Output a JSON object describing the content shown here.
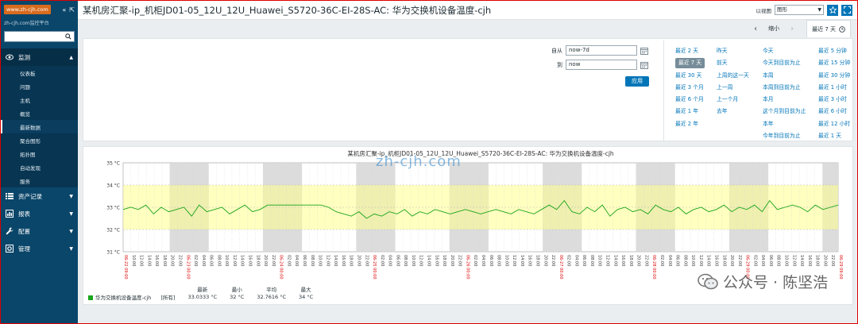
{
  "sidebar": {
    "logo": "www.zh-cjh.com",
    "subtitle": "zh-cjh.com监控平台",
    "search_placeholder": "",
    "menu": [
      {
        "label": "监测",
        "icon": "eye-icon",
        "expanded": true
      },
      {
        "label": "资产记录",
        "icon": "list-icon"
      },
      {
        "label": "报表",
        "icon": "report-icon"
      },
      {
        "label": "配置",
        "icon": "wrench-icon"
      },
      {
        "label": "管理",
        "icon": "gear-icon"
      }
    ],
    "submenu": [
      "仪表板",
      "问题",
      "主机",
      "概览",
      "最新数据",
      "聚合图形",
      "拓扑图",
      "自动发现",
      "服务"
    ],
    "current_sub": "最新数据"
  },
  "header": {
    "title": "某机房汇聚-ip_机柜JD01-05_12U_12U_Huawei_S5720-36C-EI-28S-AC: 华为交换机设备温度-cjh",
    "view_label": "以视图",
    "view_value": "图形"
  },
  "nav": {
    "zoom_out": "缩小",
    "tab": "最近 7 天"
  },
  "filter": {
    "from_label": "自从",
    "from_value": "now-7d",
    "to_label": "到",
    "to_value": "now",
    "apply": "应用",
    "quick_cols": [
      [
        "最近 2 天",
        "最近 7 天",
        "最近 30 天",
        "最近 3 个月",
        "最近 6 个月",
        "最近 1 年",
        "最近 2 年"
      ],
      [
        "昨天",
        "前天",
        "上周的这一天",
        "上一周",
        "上一个月",
        "去年"
      ],
      [
        "今天",
        "今天到目前为止",
        "本周",
        "本周到目前为止",
        "本月",
        "这个月到目前为止",
        "本年",
        "今年到目前为止"
      ],
      [
        "最近 5 分钟",
        "最近 15 分钟",
        "最近 30 分钟",
        "最近 1 小时",
        "最近 3 小时",
        "最近 6 小时",
        "最近 12 小时",
        "最近 1 天"
      ]
    ],
    "selected": "最近 7 天"
  },
  "chart_data": {
    "type": "line",
    "title": "某机房汇聚-ip_机柜JD01-05_12U_12U_Huawei_S5720-36C-EI-28S-AC: 华为交换机设备温度-cjh",
    "y_ticks": [
      "35 °C",
      "34 °C",
      "33 °C",
      "32 °C",
      "31 °C"
    ],
    "ylim": [
      31,
      35
    ],
    "band_min": 32,
    "band_max": 34,
    "x_tick_labels": [
      "06-22 09:00",
      "10:00",
      "12:00",
      "14:00",
      "16:00",
      "18:00",
      "20:00",
      "22:00",
      "06-23 00:00",
      "02:00",
      "04:00",
      "06:00",
      "08:00",
      "10:00",
      "12:00",
      "14:00",
      "16:00",
      "18:00",
      "20:00",
      "22:00",
      "06-24 00:00",
      "02:00",
      "04:00",
      "06:00",
      "08:00",
      "10:00",
      "12:00",
      "14:00",
      "16:00",
      "18:00",
      "20:00",
      "22:00",
      "06-25 00:00",
      "02:00",
      "04:00",
      "06:00",
      "08:00",
      "10:00",
      "12:00",
      "14:00",
      "16:00",
      "18:00",
      "20:00",
      "22:00",
      "06-26 00:00",
      "02:00",
      "04:00",
      "06:00",
      "08:00",
      "10:00",
      "12:00",
      "14:00",
      "16:00",
      "18:00",
      "20:00",
      "22:00",
      "06-27 00:00",
      "02:00",
      "04:00",
      "06:00",
      "08:00",
      "10:00",
      "12:00",
      "14:00",
      "16:00",
      "18:00",
      "20:00",
      "22:00",
      "06-28 00:00",
      "02:00",
      "04:00",
      "06:00",
      "08:00",
      "10:00",
      "12:00",
      "14:00",
      "16:00",
      "18:00",
      "20:00",
      "22:00",
      "06-29 00:00",
      "02:00",
      "04:00",
      "06:00",
      "08:00",
      "10:00",
      "12:00",
      "14:00",
      "16:00",
      "18:00",
      "20:00",
      "22:00",
      "06-29 09:00"
    ],
    "series": [
      {
        "name": "华为交换机设备温度-cjh",
        "color": "#1aa51a",
        "values": [
          32.9,
          33.0,
          32.9,
          33.1,
          32.7,
          33.0,
          32.8,
          32.9,
          33.0,
          32.6,
          33.1,
          32.8,
          32.9,
          33.0,
          32.7,
          32.9,
          33.1,
          32.8,
          32.9,
          33.1,
          33.1,
          33.1,
          33.1,
          33.1,
          33.1,
          33.1,
          33.1,
          33.0,
          32.8,
          32.7,
          32.6,
          32.8,
          32.5,
          32.7,
          32.6,
          32.8,
          32.7,
          32.9,
          32.6,
          32.8,
          32.7,
          32.9,
          32.8,
          32.7,
          32.8,
          32.9,
          32.8,
          32.7,
          32.8,
          32.9,
          32.8,
          32.7,
          32.9,
          32.8,
          32.7,
          32.9,
          33.1,
          32.9,
          33.3,
          32.8,
          32.7,
          33.0,
          32.8,
          33.1,
          32.6,
          32.9,
          33.0,
          32.8,
          32.9,
          32.7,
          33.1,
          32.9,
          32.8,
          33.0,
          32.7,
          32.9,
          33.0,
          32.8,
          32.9,
          33.1,
          32.8,
          33.0,
          32.9,
          33.1,
          32.8,
          33.3,
          32.9,
          33.0,
          33.1,
          33.0,
          32.8,
          33.1,
          32.9,
          33.0,
          33.1
        ]
      }
    ],
    "grid": true
  },
  "legend": {
    "series": "华为交换机设备温度-cjh",
    "func": "[所有]",
    "last_label": "最新",
    "last_value": "33.0333 °C",
    "min_label": "最小",
    "min_value": "32 °C",
    "avg_label": "平均",
    "avg_value": "32.7616 °C",
    "max_label": "最大",
    "max_value": "34 °C"
  },
  "watermark": "zh-cjh.com",
  "wechat": "公众号 · 陈坚浩"
}
